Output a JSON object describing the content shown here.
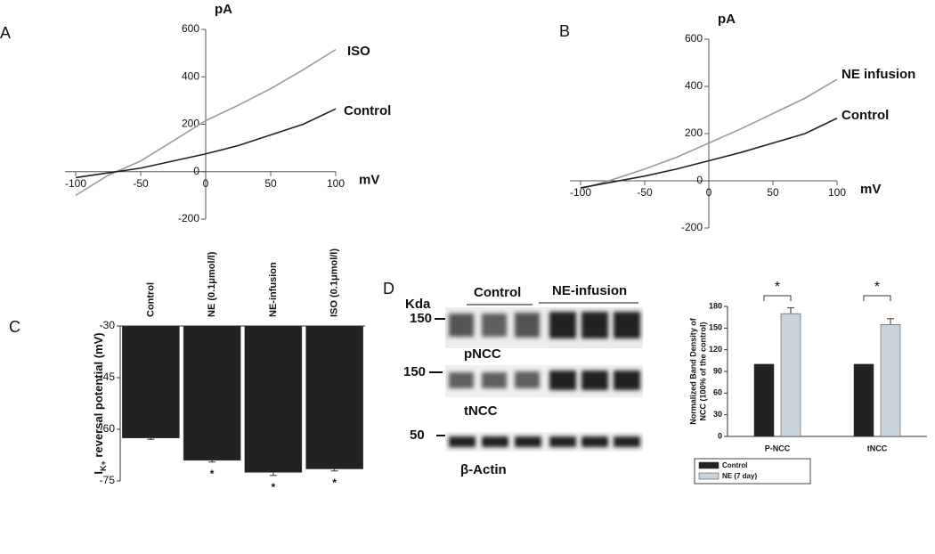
{
  "chart_data": [
    {
      "type": "line",
      "panel": "A",
      "xlabel": "mV",
      "ylabel": "pA",
      "x": [
        -100,
        -75,
        -50,
        -25,
        0,
        25,
        50,
        75,
        100
      ],
      "series": [
        {
          "name": "ISO",
          "color": "#9a9a9a",
          "values": [
            -100,
            -15,
            45,
            130,
            215,
            280,
            350,
            430,
            515
          ]
        },
        {
          "name": "Control",
          "color": "#222222",
          "values": [
            -25,
            -5,
            15,
            45,
            75,
            110,
            155,
            200,
            265
          ]
        }
      ],
      "xlim": [
        -100,
        100
      ],
      "xticks": [
        -100,
        -50,
        0,
        50,
        100
      ],
      "ylim": [
        -200,
        600
      ],
      "yticks": [
        -200,
        0,
        200,
        400,
        600
      ]
    },
    {
      "type": "line",
      "panel": "B",
      "xlabel": "mV",
      "ylabel": "pA",
      "x": [
        -100,
        -75,
        -50,
        -25,
        0,
        25,
        50,
        75,
        100
      ],
      "series": [
        {
          "name": "NE infusion",
          "color": "#9a9a9a",
          "values": [
            -35,
            5,
            50,
            100,
            160,
            220,
            285,
            350,
            430
          ]
        },
        {
          "name": "Control",
          "color": "#222222",
          "values": [
            -30,
            -5,
            20,
            50,
            85,
            120,
            160,
            200,
            265
          ]
        }
      ],
      "xlim": [
        -100,
        100
      ],
      "xticks": [
        -100,
        -50,
        0,
        50,
        100
      ],
      "ylim": [
        -200,
        600
      ],
      "yticks": [
        -200,
        0,
        200,
        400,
        600
      ]
    },
    {
      "type": "bar",
      "panel": "C",
      "ylabel": [
        "I",
        "K+",
        " reversal potential (mV)"
      ],
      "categories": [
        "Control",
        "NE (0.1μmol/l)",
        "NE-infusion",
        "ISO (0.1μmol/l)"
      ],
      "values": [
        -62.5,
        -69,
        -72.5,
        -71.5
      ],
      "errors": [
        0.4,
        0.5,
        0.9,
        0.6
      ],
      "color": "#222222",
      "ylim": [
        -75,
        -30
      ],
      "yticks": [
        -30,
        -45,
        -60,
        -75
      ],
      "annotations": [
        {
          "index": 1,
          "text": "*"
        },
        {
          "index": 2,
          "text": "*"
        },
        {
          "index": 3,
          "text": "*"
        }
      ]
    },
    {
      "type": "bar",
      "ylabel": [
        "Normalized Band Density of",
        "NCC (100% of the control)"
      ],
      "categories": [
        "P-NCC",
        "tNCC"
      ],
      "series": [
        {
          "name": "Control",
          "color": "#222222",
          "values": [
            100,
            100
          ]
        },
        {
          "name": "NE (7 day)",
          "color": "#c8d3dc",
          "values": [
            170,
            155
          ],
          "errors": [
            8,
            8
          ]
        }
      ],
      "ylim": [
        0,
        180
      ],
      "yticks": [
        0,
        30,
        60,
        90,
        120,
        150,
        180
      ],
      "legend": "bottom",
      "annotations": [
        {
          "index": 0,
          "text": "*"
        },
        {
          "index": 1,
          "text": "*"
        }
      ]
    }
  ],
  "blot": {
    "panel": "D",
    "unit": "Kda",
    "groups": [
      "Control",
      "NE-infusion"
    ],
    "rows": [
      {
        "marker": "150",
        "label": "pNCC"
      },
      {
        "marker": "150",
        "label": "tNCC"
      },
      {
        "marker": "50",
        "label": "β-Actin"
      }
    ]
  }
}
